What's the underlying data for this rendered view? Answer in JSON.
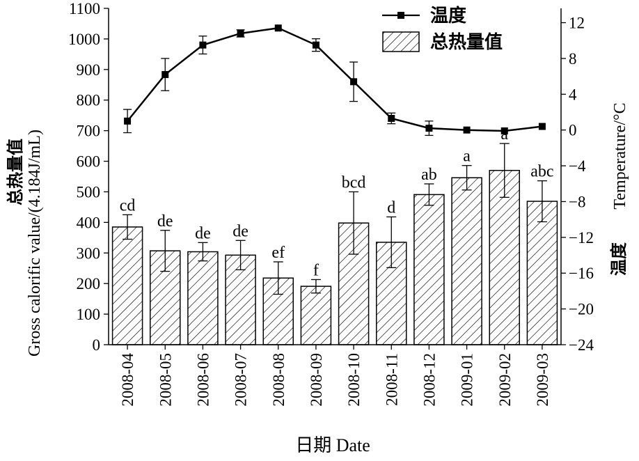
{
  "chart_data": {
    "type": "bar",
    "categories": [
      "2008-04",
      "2008-05",
      "2008-06",
      "2008-07",
      "2008-08",
      "2008-09",
      "2008-10",
      "2008-11",
      "2008-12",
      "2009-01",
      "2009-02",
      "2009-03"
    ],
    "x_label": "日期 Date",
    "y_left_label": "总热量值 Gross calorific value/(4.184J/mL)",
    "y_left_label_parts": [
      "总热量值",
      "Gross calorific value/(4.184J/mL)"
    ],
    "y_left_range": [
      0,
      1100
    ],
    "y_left_ticks": [
      0,
      100,
      200,
      300,
      400,
      500,
      600,
      700,
      800,
      900,
      1000,
      1100
    ],
    "y_right_label": "温度 Temperature/°C",
    "y_right_label_parts": [
      "温度",
      "Temperature/°C"
    ],
    "y_right_range": [
      -24,
      13.6
    ],
    "y_right_ticks": [
      -24,
      -20,
      -16,
      -12,
      -8,
      -4,
      0,
      4,
      8,
      12
    ],
    "grid": false,
    "legend_position": "top-right",
    "series": [
      {
        "name": "总热量值",
        "type": "bar",
        "axis": "left",
        "pattern": "diagonal-hatch",
        "values": [
          385,
          307,
          304,
          293,
          218,
          191,
          398,
          335,
          491,
          546,
          570,
          469
        ],
        "errors": [
          40,
          67,
          30,
          48,
          53,
          22,
          102,
          83,
          35,
          40,
          88,
          67
        ],
        "letters": [
          "cd",
          "de",
          "de",
          "de",
          "ef",
          "f",
          "bcd",
          "d",
          "ab",
          "a",
          "a",
          "abc"
        ]
      },
      {
        "name": "温度",
        "type": "line",
        "axis": "right",
        "marker": "square",
        "values": [
          1.0,
          6.2,
          9.5,
          10.8,
          11.4,
          9.5,
          5.4,
          1.3,
          0.2,
          0.0,
          -0.1,
          0.4
        ],
        "errors": [
          1.3,
          1.8,
          1.0,
          0.4,
          0,
          0.7,
          2.2,
          0.6,
          0.8,
          0,
          0,
          0
        ]
      }
    ],
    "colors": {
      "line": "#000000",
      "bar_fill": "#ffffff",
      "bar_stroke": "#000000"
    }
  }
}
